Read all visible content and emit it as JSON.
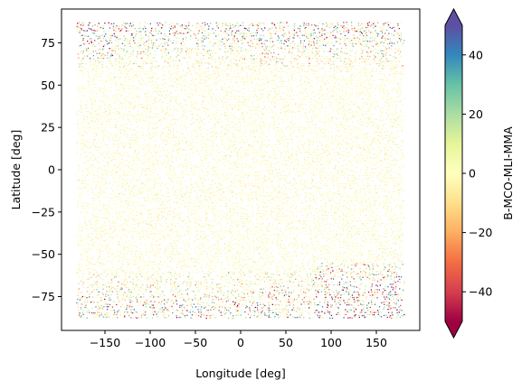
{
  "chart_data": {
    "type": "scatter",
    "title": "",
    "xlabel": "Longitude [deg]",
    "ylabel": "Latitude [deg]",
    "xlim": [
      -198,
      198
    ],
    "ylim": [
      -95,
      95
    ],
    "xticks": [
      -150,
      -100,
      -50,
      0,
      50,
      100,
      150
    ],
    "yticks": [
      -75,
      -50,
      -25,
      0,
      25,
      50,
      75
    ],
    "xtick_labels": [
      "−150",
      "−100",
      "−50",
      "0",
      "50",
      "100",
      "150"
    ],
    "ytick_labels": [
      "−75",
      "−50",
      "−25",
      "0",
      "25",
      "50",
      "75"
    ],
    "grid": false,
    "data_extent": {
      "lon": [
        -180,
        180
      ],
      "lat": [
        -87,
        87
      ]
    },
    "description_of_values": "Dense swath-pattern scatter of B-MCO-MLI-MMA values; near zero (pale yellow) across mid-latitudes, larger magnitude (red/blue) near poles, especially lat < -55 at lon 90..180.",
    "colorbar": {
      "label": "B-MCO-MLI-MMA",
      "range": [
        -50,
        50
      ],
      "ticks": [
        -40,
        -20,
        0,
        20,
        40
      ],
      "tick_labels": [
        "−40",
        "−20",
        "0",
        "20",
        "40"
      ],
      "colormap": "Spectral",
      "extend": "both",
      "colors": [
        "#9e0142",
        "#d53e4f",
        "#f46d43",
        "#fdae61",
        "#fee08b",
        "#ffffbf",
        "#e6f598",
        "#abdda4",
        "#66c2a5",
        "#3288bd",
        "#5e4fa2"
      ]
    }
  }
}
